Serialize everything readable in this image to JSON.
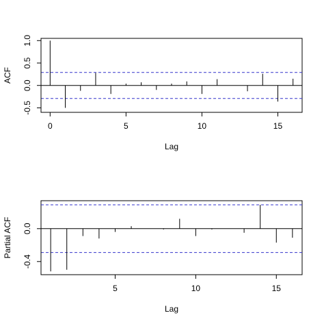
{
  "chart_data": [
    {
      "type": "bar",
      "subtype": "acf-spikes",
      "xlabel": "Lag",
      "ylabel": "ACF",
      "xlim": [
        -0.6,
        16.6
      ],
      "ylim": [
        -0.6,
        1.05
      ],
      "x": [
        0,
        1,
        2,
        3,
        4,
        5,
        6,
        7,
        8,
        9,
        10,
        11,
        12,
        13,
        14,
        15,
        16
      ],
      "values": [
        1.0,
        -0.5,
        -0.12,
        0.28,
        -0.19,
        0.04,
        0.07,
        -0.1,
        0.04,
        0.09,
        -0.19,
        0.14,
        0.0,
        -0.13,
        0.26,
        -0.36,
        0.15
      ],
      "confidence_band": [
        0.29,
        -0.29
      ],
      "band_color": "#3333cc",
      "xticks": [
        0,
        5,
        10,
        15
      ],
      "xtick_labels": [
        "0",
        "5",
        "10",
        "15"
      ],
      "yticks": [
        -0.5,
        0.0,
        0.5,
        1.0
      ],
      "ytick_labels": [
        "-0.5",
        "0.0",
        "0.5",
        "1.0"
      ]
    },
    {
      "type": "bar",
      "subtype": "pacf-spikes",
      "xlabel": "Lag",
      "ylabel": "Partial ACF",
      "xlim": [
        0.4,
        16.6
      ],
      "ylim": [
        -0.56,
        0.34
      ],
      "x": [
        1,
        2,
        3,
        4,
        5,
        6,
        7,
        8,
        9,
        10,
        11,
        12,
        13,
        14,
        15,
        16
      ],
      "values": [
        -0.52,
        -0.5,
        -0.09,
        -0.12,
        -0.04,
        0.03,
        0.0,
        -0.01,
        0.12,
        -0.09,
        -0.01,
        0.0,
        -0.05,
        0.29,
        -0.17,
        -0.11
      ],
      "confidence_band": [
        0.29,
        -0.29
      ],
      "band_color": "#3333cc",
      "xticks": [
        5,
        10,
        15
      ],
      "xtick_labels": [
        "5",
        "10",
        "15"
      ],
      "yticks": [
        -0.4,
        0.0
      ],
      "ytick_labels": [
        "-0.4",
        "0.0"
      ]
    }
  ]
}
